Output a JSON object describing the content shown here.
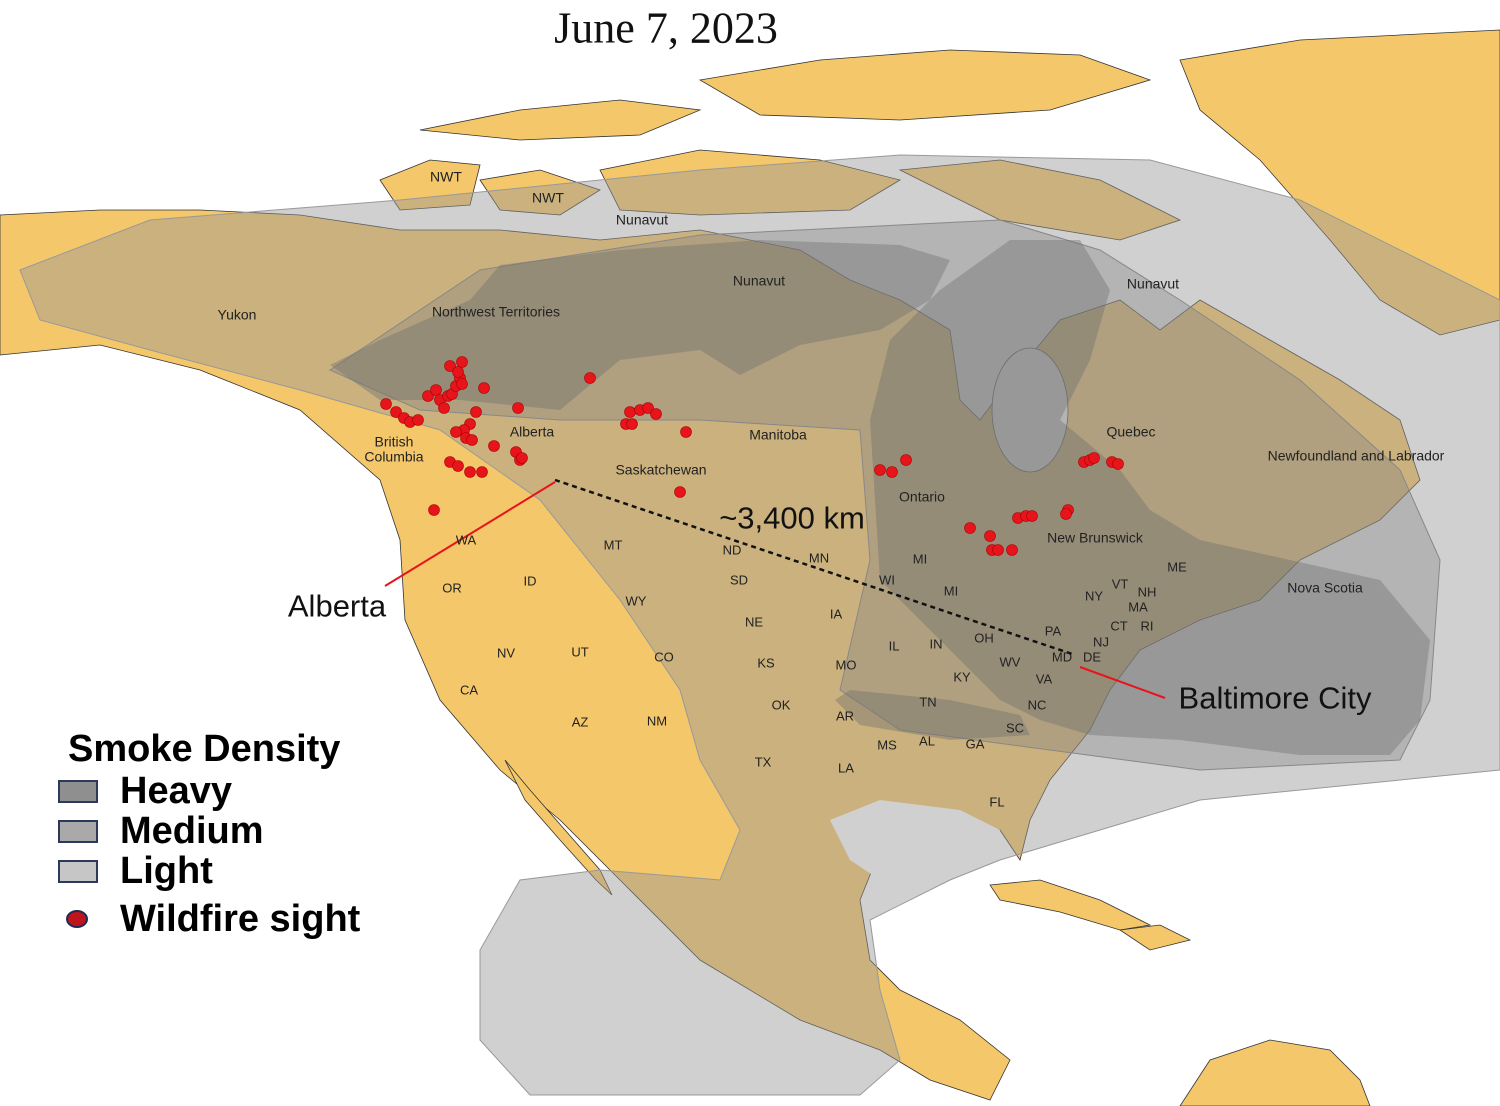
{
  "title": "June 7, 2023",
  "colors": {
    "land": "#F5C76B",
    "heavy": "#8f8f8f",
    "medium": "#a9a9a9",
    "light": "#c6c6c6",
    "wildfire": "#e8141c",
    "annotation_line": "#e8141c"
  },
  "map": {
    "region_labels": [
      "NWT",
      "NWT",
      "Nunavut",
      "Nunavut",
      "Nunavut",
      "Yukon",
      "Northwest Territories",
      "British Columbia",
      "Alberta",
      "Saskatchewan",
      "Manitoba",
      "Ontario",
      "Quebec",
      "Newfoundland and Labrador",
      "New Brunswick",
      "Nova Scotia"
    ],
    "state_labels": [
      "WA",
      "OR",
      "ID",
      "MT",
      "ND",
      "MN",
      "SD",
      "WY",
      "NE",
      "IA",
      "WI",
      "MI",
      "MI",
      "NY",
      "VT",
      "NH",
      "ME",
      "MA",
      "CT",
      "RI",
      "PA",
      "NJ",
      "OH",
      "IN",
      "IL",
      "NV",
      "UT",
      "CO",
      "KS",
      "MO",
      "WV",
      "MD",
      "DE",
      "KY",
      "VA",
      "CA",
      "AZ",
      "NM",
      "OK",
      "AR",
      "TN",
      "NC",
      "SC",
      "MS",
      "AL",
      "GA",
      "TX",
      "LA",
      "FL"
    ]
  },
  "annotations": {
    "distance": "~3,400 km",
    "origin": "Alberta",
    "destination": "Baltimore City"
  },
  "legend": {
    "title": "Smoke Density",
    "items": [
      {
        "label": "Heavy",
        "color": "#8f8f8f"
      },
      {
        "label": "Medium",
        "color": "#a9a9a9"
      },
      {
        "label": "Light",
        "color": "#c6c6c6"
      },
      {
        "label": "Wildfire sight",
        "color": "#c0141c"
      }
    ]
  }
}
